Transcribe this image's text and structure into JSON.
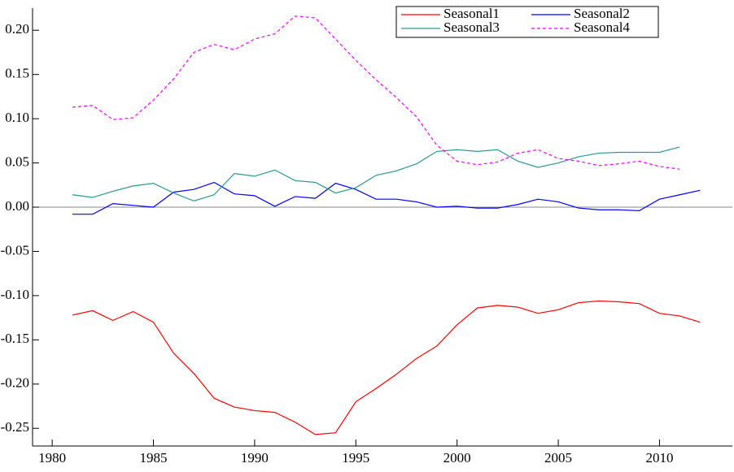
{
  "chart_data": {
    "type": "line",
    "x": [
      1981,
      1982,
      1983,
      1984,
      1985,
      1986,
      1987,
      1988,
      1989,
      1990,
      1991,
      1992,
      1993,
      1994,
      1995,
      1996,
      1997,
      1998,
      1999,
      2000,
      2001,
      2002,
      2003,
      2004,
      2005,
      2006,
      2007,
      2008,
      2009,
      2010,
      2011,
      2012
    ],
    "series": [
      {
        "name": "Seasonal1",
        "color": "#ff0000",
        "linestyle": "solid",
        "values": [
          -0.122,
          -0.117,
          -0.128,
          -0.118,
          -0.13,
          -0.165,
          -0.188,
          -0.216,
          -0.226,
          -0.23,
          -0.232,
          -0.243,
          -0.257,
          -0.255,
          -0.22,
          -0.205,
          -0.189,
          -0.171,
          -0.157,
          -0.133,
          -0.114,
          -0.111,
          -0.113,
          -0.12,
          -0.116,
          -0.108,
          -0.106,
          -0.107,
          -0.109,
          -0.12,
          -0.123,
          -0.13
        ]
      },
      {
        "name": "Seasonal2",
        "color": "#0000ff",
        "linestyle": "solid",
        "values": [
          -0.008,
          -0.008,
          0.004,
          0.002,
          0.0,
          0.017,
          0.02,
          0.028,
          0.015,
          0.013,
          0.001,
          0.012,
          0.01,
          0.027,
          0.02,
          0.009,
          0.009,
          0.006,
          0.0,
          0.001,
          -0.001,
          -0.001,
          0.003,
          0.009,
          0.006,
          -0.001,
          -0.003,
          -0.003,
          -0.004,
          0.009,
          0.014,
          0.019
        ]
      },
      {
        "name": "Seasonal3",
        "color": "#2a9a8a",
        "linestyle": "solid",
        "values": [
          0.014,
          0.011,
          0.018,
          0.024,
          0.027,
          0.016,
          0.007,
          0.014,
          0.038,
          0.035,
          0.042,
          0.03,
          0.028,
          0.016,
          0.022,
          0.036,
          0.041,
          0.049,
          0.063,
          0.065,
          0.063,
          0.065,
          0.052,
          0.045,
          0.05,
          0.057,
          0.061,
          0.062,
          0.062,
          0.062,
          0.068,
          null
        ]
      },
      {
        "name": "Seasonal4",
        "color": "#ff00ff",
        "linestyle": "dashed",
        "values": [
          0.113,
          0.115,
          0.099,
          0.101,
          0.121,
          0.145,
          0.175,
          0.184,
          0.178,
          0.19,
          0.196,
          0.216,
          0.214,
          0.19,
          0.166,
          0.144,
          0.124,
          0.102,
          0.07,
          0.052,
          0.048,
          0.051,
          0.061,
          0.065,
          0.055,
          0.052,
          0.047,
          0.049,
          0.052,
          0.046,
          0.043,
          null
        ]
      }
    ],
    "xlim": [
      1979.03,
      2013.6
    ],
    "xticks": [
      1980,
      1985,
      1990,
      1995,
      2000,
      2005,
      2010
    ],
    "ylim": [
      -0.27,
      0.225
    ],
    "yticks": [
      {
        "value": -0.25,
        "label": "-0.25"
      },
      {
        "value": -0.2,
        "label": "-0.20"
      },
      {
        "value": -0.15,
        "label": "-0.15"
      },
      {
        "value": -0.1,
        "label": "-0.10"
      },
      {
        "value": -0.05,
        "label": "-0.05"
      },
      {
        "value": 0,
        "label": "0.00"
      },
      {
        "value": 0.05,
        "label": "0.05"
      },
      {
        "value": 0.1,
        "label": "0.10"
      },
      {
        "value": 0.15,
        "label": "0.15"
      },
      {
        "value": 0.2,
        "label": "0.20"
      }
    ],
    "legend": "upper center",
    "grid": false
  }
}
